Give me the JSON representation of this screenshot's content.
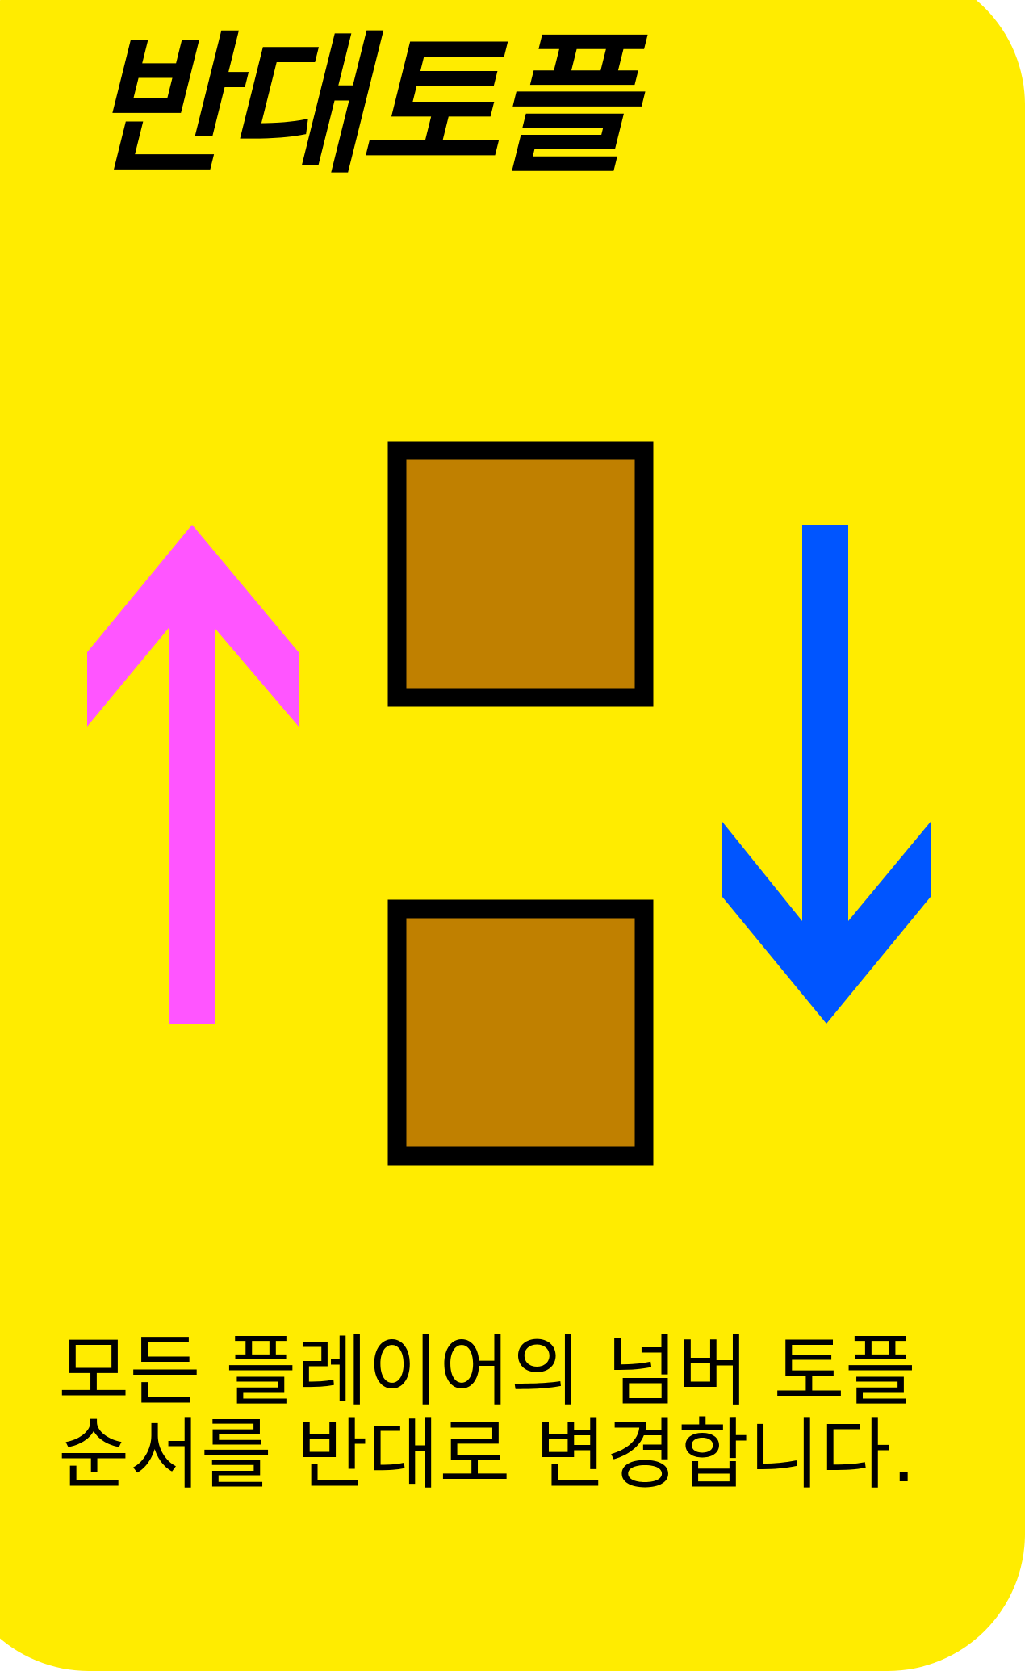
{
  "card": {
    "title": "반대토플",
    "description_lines": [
      "모든 플레이어의 넘버 토플",
      "순서를 반대로 변경합니다."
    ],
    "colors": {
      "background": "#ffec00",
      "up_arrow": "#ff55ff",
      "down_arrow": "#0055ff",
      "box_fill": "#c08000",
      "box_border": "#000000"
    },
    "icons": [
      "up-arrow-icon",
      "down-arrow-icon",
      "block-icon",
      "block-icon"
    ]
  }
}
